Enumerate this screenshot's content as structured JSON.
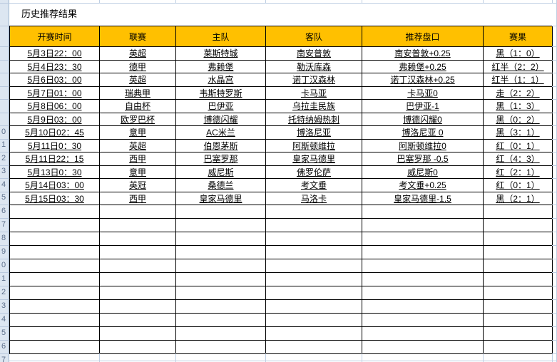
{
  "title": "历史推荐结果",
  "colors": {
    "header_bg": "#ffc000",
    "result_black": "#000000",
    "result_red": "#ff0000",
    "result_blue": "#00b0f0",
    "row_header_bg": "#dce6f1",
    "gridline": "#bfcfe3"
  },
  "table": {
    "headers": [
      "开赛时间",
      "联赛",
      "主队",
      "客队",
      "推荐盘口",
      "赛果"
    ],
    "rows": [
      {
        "time": "5月3日22：00",
        "league": "英超",
        "home": "莱斯特城",
        "away": "南安普敦",
        "handicap": "南安普敦+0.25",
        "result": "黑（1：0）",
        "result_color": "black"
      },
      {
        "time": "5月4日23：30",
        "league": "德甲",
        "home": "弗赖堡",
        "away": "勒沃库森",
        "handicap": "弗赖堡+0.25",
        "result": "红半（2：2）",
        "result_color": "red"
      },
      {
        "time": "5月6日03：00",
        "league": "英超",
        "home": "水晶宫",
        "away": "诺丁汉森林",
        "handicap": "诺丁汉森林+0.25",
        "result": "红半（1：1）",
        "result_color": "red"
      },
      {
        "time": "5月7日01：00",
        "league": "瑞典甲",
        "home": "韦斯特罗斯",
        "away": "卡马亚",
        "handicap": "卡马亚0",
        "result": "走（2：2）",
        "result_color": "blue"
      },
      {
        "time": "5月8日06：00",
        "league": "自由杯",
        "home": "巴伊亚",
        "away": "乌拉圭民族",
        "handicap": "巴伊亚-1",
        "result": "黑（1：3）",
        "result_color": "black"
      },
      {
        "time": "5月9日03：00",
        "league": "欧罗巴杯",
        "home": "博德闪耀",
        "away": "托特纳姆热刺",
        "handicap": "博德闪耀0",
        "result": "黑（0：2）",
        "result_color": "black"
      },
      {
        "time": "5月10日02：45",
        "league": "意甲",
        "home": "AC米兰",
        "away": "博洛尼亚",
        "handicap": "博洛尼亚 0",
        "result": "黑（3：1）",
        "result_color": "black"
      },
      {
        "time": "5月11日0：30",
        "league": "英超",
        "home": "伯恩茅斯",
        "away": "阿斯顿维拉",
        "handicap": "阿斯顿维拉0",
        "result": "红（0：1）",
        "result_color": "red"
      },
      {
        "time": "5月11日22：15",
        "league": "西甲",
        "home": "巴塞罗那",
        "away": "皇家马德里",
        "handicap": "巴塞罗那 -0.5",
        "result": "红（4：3）",
        "result_color": "red"
      },
      {
        "time": "5月13日0：30",
        "league": "意甲",
        "home": "威尼斯",
        "away": "佛罗伦萨",
        "handicap": "威尼斯0",
        "result": "红（2：1）",
        "result_color": "red"
      },
      {
        "time": "5月14日03：00",
        "league": "英冠",
        "home": "桑德兰",
        "away": "考文垂",
        "handicap": "考文垂+0.25",
        "result": "红（0：1）",
        "result_color": "red"
      },
      {
        "time": "5月15日03：30",
        "league": "西甲",
        "home": "皇家马德里",
        "away": "马洛卡",
        "handicap": "皇家马德里-1.5",
        "result": "黑（2：1）",
        "result_color": "black"
      }
    ],
    "empty_row_count": 11
  },
  "row_header_digits": [
    "0",
    "1",
    "2",
    "3",
    "4",
    "5",
    "6",
    "7",
    "8",
    "9",
    "0",
    "1",
    "2",
    "3",
    "4",
    "5",
    "6",
    "7"
  ]
}
